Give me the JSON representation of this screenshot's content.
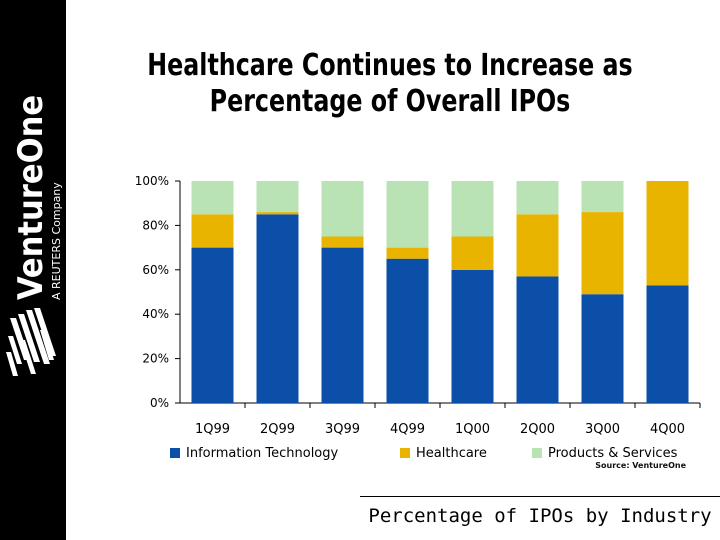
{
  "branding": {
    "company": "VentureOne",
    "tagline": "A REUTERS Company"
  },
  "title_lines": [
    "Healthcare Continues to Increase as",
    "Percentage of Overall IPOs"
  ],
  "source": "Source: VentureOne",
  "caption": "Percentage of IPOs by Industry",
  "chart_data": {
    "type": "bar",
    "stacked": true,
    "categories": [
      "1Q99",
      "2Q99",
      "3Q99",
      "4Q99",
      "1Q00",
      "2Q00",
      "3Q00",
      "4Q00"
    ],
    "y_ticks": [
      "0%",
      "20%",
      "40%",
      "60%",
      "80%",
      "100%"
    ],
    "ylim": [
      0,
      100
    ],
    "legend_position": "bottom",
    "series": [
      {
        "name": "Information Technology",
        "color": "#0b4fa8",
        "values": [
          70,
          85,
          70,
          65,
          60,
          57,
          49,
          53
        ]
      },
      {
        "name": "Healthcare",
        "color": "#e8b400",
        "values": [
          15,
          1,
          5,
          5,
          15,
          28,
          37,
          47
        ]
      },
      {
        "name": "Products & Services",
        "color": "#b9e3b4",
        "values": [
          15,
          14,
          25,
          30,
          25,
          15,
          14,
          0
        ]
      }
    ]
  }
}
